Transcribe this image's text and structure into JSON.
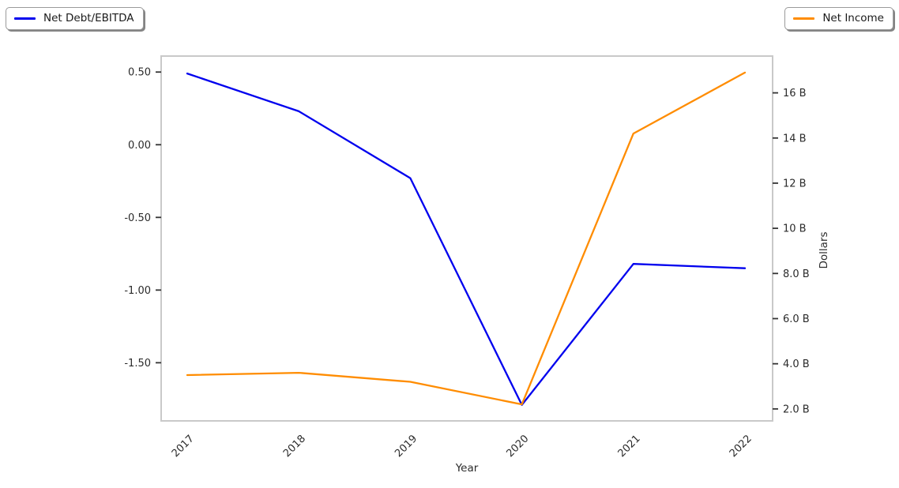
{
  "legend_left": {
    "label": "Net Debt/EBITDA",
    "color": "#0000ee"
  },
  "legend_right": {
    "label": "Net Income",
    "color": "#ff8c00"
  },
  "chart_data": {
    "type": "line",
    "title": "",
    "xlabel": "Year",
    "x": [
      2017,
      2018,
      2019,
      2020,
      2021,
      2022
    ],
    "x_tick_labels": [
      "2017",
      "2018",
      "2019",
      "2020",
      "2021",
      "2022"
    ],
    "series": [
      {
        "name": "Net Debt/EBITDA",
        "axis": "left",
        "color": "#0000ee",
        "values": [
          0.49,
          0.23,
          -0.23,
          -1.79,
          -0.82,
          -0.85
        ]
      },
      {
        "name": "Net Income",
        "axis": "right",
        "color": "#ff8c00",
        "values": [
          3.5,
          3.6,
          3.2,
          2.2,
          14.2,
          16.9
        ],
        "unit": "B USD"
      }
    ],
    "left_axis": {
      "label": "",
      "ticks": [
        0.5,
        0.0,
        -0.5,
        -1.0,
        -1.5
      ],
      "tick_labels": [
        "0.50",
        "0.00",
        "-0.50",
        "-1.00",
        "-1.50"
      ],
      "range": [
        -1.9,
        0.61
      ]
    },
    "right_axis": {
      "label": "Dollars",
      "ticks": [
        2,
        4,
        6,
        8,
        10,
        12,
        14,
        16
      ],
      "tick_labels": [
        "2.0 B",
        "4.0 B",
        "6.0 B",
        "8.0 B",
        "10 B",
        "12 B",
        "14 B",
        "16 B"
      ],
      "range": [
        1.47,
        17.63
      ]
    },
    "grid": false,
    "legend_position": "outside-top: left series upper-left, right series upper-right"
  }
}
